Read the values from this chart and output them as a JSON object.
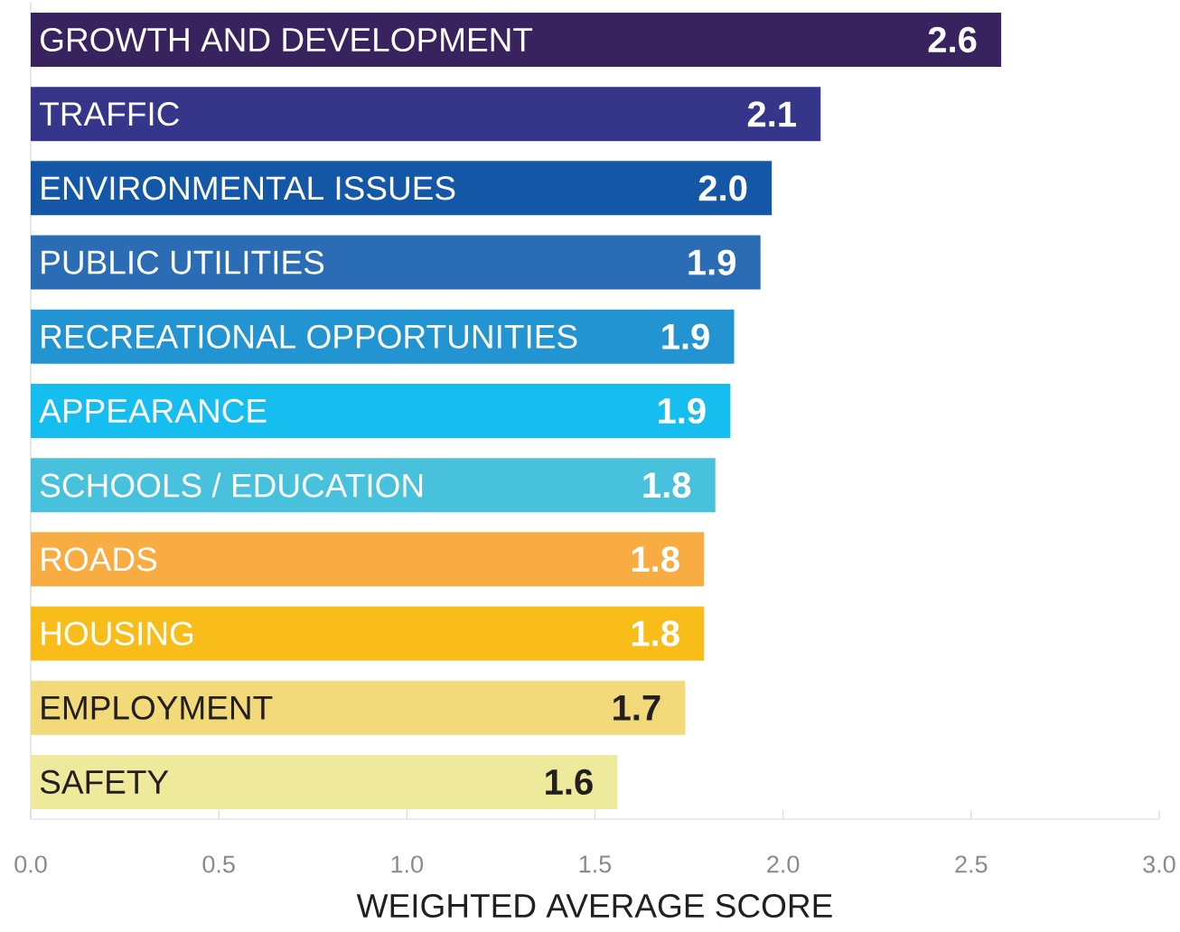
{
  "chart_data": {
    "type": "bar",
    "orientation": "horizontal",
    "categories": [
      "GROWTH AND DEVELOPMENT",
      "TRAFFIC",
      "ENVIRONMENTAL ISSUES",
      "PUBLIC UTILITIES",
      "RECREATIONAL OPPORTUNITIES",
      "APPEARANCE",
      "SCHOOLS / EDUCATION",
      "ROADS",
      "HOUSING",
      "EMPLOYMENT",
      "SAFETY"
    ],
    "values": [
      2.58,
      2.1,
      1.97,
      1.94,
      1.87,
      1.86,
      1.82,
      1.79,
      1.79,
      1.74,
      1.56
    ],
    "value_labels": [
      "2.6",
      "2.1",
      "2.0",
      "1.9",
      "1.9",
      "1.9",
      "1.8",
      "1.8",
      "1.8",
      "1.7",
      "1.6"
    ],
    "colors": [
      "#38235f",
      "#35358a",
      "#1557a7",
      "#2a6db5",
      "#2394d2",
      "#16bef0",
      "#48c2dc",
      "#f9ac42",
      "#f8bd19",
      "#f2da7a",
      "#efe99c"
    ],
    "xlabel": "WEIGHTED AVERAGE SCORE",
    "xlim": [
      0,
      3
    ],
    "xticks": [
      {
        "value": 0,
        "label": "0.0"
      },
      0.5,
      {
        "value": 1,
        "label": "1.0"
      },
      1.5,
      {
        "value": 2,
        "label": "2.0"
      },
      2.5,
      {
        "value": 3,
        "label": "3.0"
      }
    ]
  }
}
